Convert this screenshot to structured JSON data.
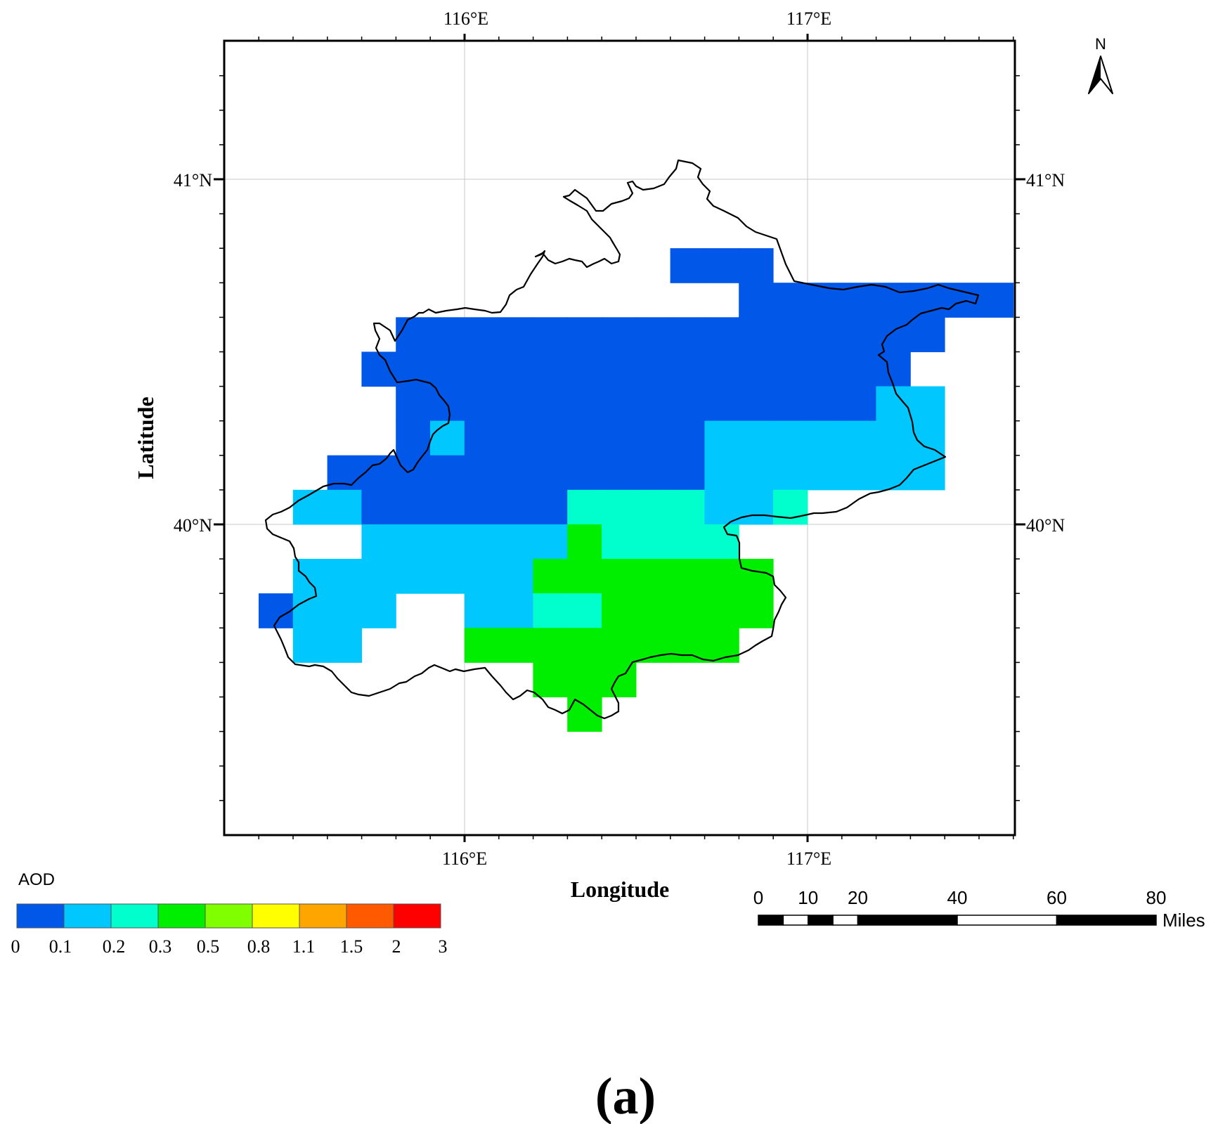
{
  "map": {
    "top_lon_labels": [
      "116°E",
      "117°E"
    ],
    "bottom_lon_labels": [
      "116°E",
      "117°E"
    ],
    "left_lat_labels": [
      "41°N",
      "40°N"
    ],
    "right_lat_labels": [
      "41°N",
      "40°N"
    ],
    "x_axis_title": "Longitude",
    "y_axis_title": "Latitude",
    "north_label": "N",
    "panel_label": "(a)",
    "cell_colors": [
      "#0057e8",
      "#00c8ff",
      "#00ffcc",
      "#00ee00"
    ],
    "grid_levels": {
      "comment_units": "AOD class index per 0.1° cell (0: 0–0.1, 1: 0.1–0.2, 2: 0.2–0.3, 3: 0.3–0.5); rows from top, columns from west",
      "rows": [
        [
          null,
          null,
          null,
          null,
          null,
          null,
          null,
          null,
          null,
          null,
          null,
          null,
          null,
          null,
          null,
          null,
          null,
          null,
          null,
          null,
          null,
          null
        ],
        [
          null,
          null,
          null,
          null,
          null,
          null,
          null,
          null,
          null,
          null,
          null,
          null,
          0,
          0,
          0,
          null,
          null,
          null,
          null,
          null,
          null,
          null
        ],
        [
          null,
          null,
          null,
          null,
          null,
          null,
          null,
          null,
          null,
          null,
          null,
          null,
          null,
          null,
          0,
          0,
          0,
          0,
          0,
          0,
          0,
          0
        ],
        [
          null,
          null,
          null,
          null,
          0,
          0,
          0,
          0,
          0,
          0,
          0,
          0,
          0,
          0,
          0,
          0,
          0,
          0,
          0,
          0,
          null,
          null
        ],
        [
          null,
          null,
          null,
          0,
          0,
          0,
          0,
          0,
          0,
          0,
          0,
          0,
          0,
          0,
          0,
          0,
          0,
          0,
          0,
          null,
          null,
          null
        ],
        [
          null,
          null,
          null,
          null,
          0,
          0,
          0,
          0,
          0,
          0,
          0,
          0,
          0,
          0,
          0,
          0,
          0,
          0,
          1,
          1,
          null,
          null
        ],
        [
          null,
          null,
          null,
          null,
          0,
          1,
          0,
          0,
          0,
          0,
          0,
          0,
          0,
          1,
          1,
          1,
          1,
          1,
          1,
          1,
          null,
          null
        ],
        [
          null,
          null,
          0,
          0,
          0,
          0,
          0,
          0,
          0,
          0,
          0,
          0,
          0,
          1,
          1,
          1,
          1,
          1,
          1,
          1,
          null,
          null
        ],
        [
          null,
          1,
          1,
          0,
          0,
          0,
          0,
          0,
          0,
          2,
          2,
          2,
          2,
          1,
          1,
          2,
          null,
          null,
          null,
          null,
          null,
          null
        ],
        [
          null,
          null,
          null,
          1,
          1,
          1,
          1,
          1,
          1,
          3,
          2,
          2,
          2,
          2,
          null,
          null,
          null,
          null,
          null,
          null,
          null,
          null
        ],
        [
          null,
          1,
          1,
          1,
          1,
          1,
          1,
          1,
          3,
          3,
          3,
          3,
          3,
          3,
          3,
          null,
          null,
          null,
          null,
          null,
          null,
          null
        ],
        [
          0,
          1,
          1,
          1,
          null,
          null,
          1,
          1,
          2,
          2,
          3,
          3,
          3,
          3,
          3,
          null,
          null,
          null,
          null,
          null,
          null,
          null
        ],
        [
          null,
          1,
          1,
          null,
          null,
          null,
          3,
          3,
          3,
          3,
          3,
          3,
          3,
          3,
          null,
          null,
          null,
          null,
          null,
          null,
          null,
          null
        ],
        [
          null,
          null,
          null,
          null,
          null,
          null,
          null,
          null,
          3,
          3,
          3,
          null,
          null,
          null,
          null,
          null,
          null,
          null,
          null,
          null,
          null,
          null
        ],
        [
          null,
          null,
          null,
          null,
          null,
          null,
          null,
          null,
          null,
          3,
          null,
          null,
          null,
          null,
          null,
          null,
          null,
          null,
          null,
          null,
          null,
          null
        ]
      ]
    }
  },
  "legend": {
    "title": "AOD",
    "colors": [
      "#0057e8",
      "#00c8ff",
      "#00ffcc",
      "#00ee00",
      "#80ff00",
      "#ffff00",
      "#ffa500",
      "#ff5a00",
      "#ff0000"
    ],
    "labels": [
      "0",
      "0.1",
      "0.2",
      "0.3",
      "0.5",
      "0.8",
      "1.1",
      "1.5",
      "2",
      "3"
    ]
  },
  "scale_bar": {
    "labels": [
      "0",
      "10",
      "20",
      "40",
      "60",
      "80"
    ],
    "values": [
      0,
      10,
      20,
      40,
      60,
      80
    ],
    "unit": "Miles"
  }
}
